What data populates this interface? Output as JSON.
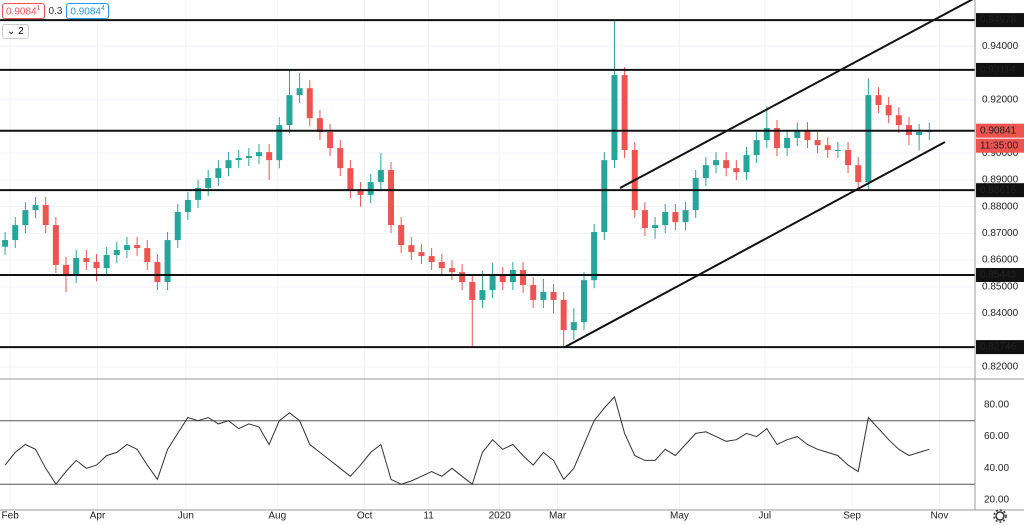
{
  "header": {
    "bid": "0.9084",
    "bid_small": "1",
    "spread": "0.3",
    "ask": "0.9084",
    "ask_small": "4",
    "indicator_count": "2"
  },
  "chart_data": [
    {
      "type": "candlestick",
      "up_color": "#26a69a",
      "down_color": "#ef5350",
      "xlim": [
        0,
        96
      ],
      "xticks": [
        {
          "value": 1,
          "label": "Feb"
        },
        {
          "value": 9.6,
          "label": "Apr"
        },
        {
          "value": 18.3,
          "label": "Jun"
        },
        {
          "value": 27.3,
          "label": "Aug"
        },
        {
          "value": 35.9,
          "label": "Oct"
        },
        {
          "value": 42.2,
          "label": "11"
        },
        {
          "value": 49.2,
          "label": "2020"
        },
        {
          "value": 54.9,
          "label": "Mar"
        },
        {
          "value": 66.9,
          "label": "May"
        },
        {
          "value": 75.3,
          "label": "Jul"
        },
        {
          "value": 83.9,
          "label": "Sep"
        },
        {
          "value": 92.5,
          "label": "Nov"
        }
      ],
      "ylim": [
        0.8159,
        0.9573
      ],
      "yticks": [
        {
          "value": 0.94,
          "label": "0.94000"
        },
        {
          "value": 0.92,
          "label": "0.92000"
        },
        {
          "value": 0.9,
          "label": "0.90000"
        },
        {
          "value": 0.89,
          "label": "0.89000"
        },
        {
          "value": 0.88,
          "label": "0.88000"
        },
        {
          "value": 0.87,
          "label": "0.87000"
        },
        {
          "value": 0.86,
          "label": "0.86000"
        },
        {
          "value": 0.85,
          "label": "0.85000"
        },
        {
          "value": 0.84,
          "label": "0.84000"
        },
        {
          "value": 0.82,
          "label": "0.82000"
        }
      ],
      "levels": [
        0.94978,
        0.93114,
        0.88616,
        0.85443,
        0.82746
      ],
      "last_price": {
        "value": 0.90841,
        "countdown": "11:35:00",
        "color": "#ef5350"
      },
      "open": [
        0.865,
        0.8675,
        0.8731,
        0.8787,
        0.8806,
        0.8731,
        0.8582,
        0.8544,
        0.8608,
        0.8593,
        0.857,
        0.8619,
        0.8638,
        0.8656,
        0.8645,
        0.8593,
        0.8518,
        0.8675,
        0.878,
        0.8825,
        0.887,
        0.8907,
        0.8944,
        0.8974,
        0.8982,
        0.8989,
        0.9004,
        0.8974,
        0.9105,
        0.9217,
        0.9243,
        0.9131,
        0.9079,
        0.9019,
        0.8944,
        0.8862,
        0.8844,
        0.8892,
        0.8937,
        0.8731,
        0.8656,
        0.863,
        0.8615,
        0.8593,
        0.857,
        0.8555,
        0.8518,
        0.8451,
        0.8488,
        0.8544,
        0.8518,
        0.8563,
        0.8507,
        0.8451,
        0.8481,
        0.8451,
        0.8338,
        0.8368,
        0.8525,
        0.8705,
        0.8974,
        0.9292,
        0.9012,
        0.8787,
        0.872,
        0.8731,
        0.878,
        0.8742,
        0.8787,
        0.8907,
        0.8955,
        0.8974,
        0.8944,
        0.8929,
        0.8993,
        0.9049,
        0.9094,
        0.9019,
        0.9057,
        0.9086,
        0.9049,
        0.903,
        0.9012,
        0.9012,
        0.8955,
        0.8892,
        0.9217,
        0.918,
        0.9142,
        0.9105,
        0.9068,
        0.9079
      ],
      "high": [
        0.8705,
        0.8761,
        0.8817,
        0.8836,
        0.8836,
        0.8761,
        0.8612,
        0.8638,
        0.8638,
        0.8623,
        0.8649,
        0.8668,
        0.8686,
        0.8686,
        0.8675,
        0.8623,
        0.8705,
        0.881,
        0.8855,
        0.89,
        0.8937,
        0.8974,
        0.9004,
        0.9012,
        0.9019,
        0.9034,
        0.9034,
        0.9135,
        0.9311,
        0.93,
        0.9273,
        0.9161,
        0.9109,
        0.9049,
        0.8974,
        0.8892,
        0.8922,
        0.9,
        0.8967,
        0.8761,
        0.8686,
        0.866,
        0.8645,
        0.8623,
        0.86,
        0.8585,
        0.8548,
        0.856,
        0.859,
        0.8574,
        0.8593,
        0.8593,
        0.8537,
        0.853,
        0.8511,
        0.8481,
        0.842,
        0.8555,
        0.8735,
        0.9004,
        0.9498,
        0.9322,
        0.9042,
        0.8817,
        0.8761,
        0.881,
        0.881,
        0.8817,
        0.8937,
        0.8985,
        0.9004,
        0.9004,
        0.8974,
        0.9023,
        0.9079,
        0.9175,
        0.9124,
        0.9087,
        0.9116,
        0.9116,
        0.9079,
        0.906,
        0.9042,
        0.9042,
        0.8985,
        0.928,
        0.9247,
        0.921,
        0.9172,
        0.9135,
        0.9109,
        0.9114
      ],
      "low": [
        0.862,
        0.8645,
        0.8701,
        0.8757,
        0.8701,
        0.8552,
        0.848,
        0.8514,
        0.8563,
        0.852,
        0.854,
        0.8589,
        0.8608,
        0.8615,
        0.8563,
        0.8488,
        0.8488,
        0.8645,
        0.875,
        0.8795,
        0.884,
        0.8877,
        0.8914,
        0.8944,
        0.8952,
        0.8959,
        0.89,
        0.8944,
        0.9075,
        0.9187,
        0.9101,
        0.9049,
        0.8989,
        0.8914,
        0.8832,
        0.88,
        0.8814,
        0.8862,
        0.8701,
        0.8626,
        0.86,
        0.8585,
        0.8563,
        0.854,
        0.8525,
        0.8488,
        0.8275,
        0.8421,
        0.8458,
        0.8488,
        0.8488,
        0.8477,
        0.8421,
        0.8421,
        0.84,
        0.8275,
        0.83,
        0.8338,
        0.8495,
        0.8675,
        0.8944,
        0.8982,
        0.8757,
        0.869,
        0.868,
        0.8701,
        0.8712,
        0.8712,
        0.8757,
        0.8877,
        0.8925,
        0.8914,
        0.8899,
        0.8899,
        0.8963,
        0.9019,
        0.8989,
        0.8989,
        0.9027,
        0.9019,
        0.9,
        0.8982,
        0.8982,
        0.8925,
        0.8862,
        0.8862,
        0.915,
        0.9112,
        0.9075,
        0.903,
        0.901,
        0.9049
      ],
      "close": [
        0.8675,
        0.8731,
        0.8787,
        0.8806,
        0.8731,
        0.8582,
        0.8544,
        0.8608,
        0.8593,
        0.857,
        0.8619,
        0.8638,
        0.8656,
        0.8645,
        0.8593,
        0.8518,
        0.8675,
        0.878,
        0.8825,
        0.887,
        0.8907,
        0.8944,
        0.8974,
        0.8982,
        0.8989,
        0.9004,
        0.8974,
        0.9105,
        0.9217,
        0.9243,
        0.9131,
        0.9079,
        0.9019,
        0.8944,
        0.8862,
        0.8844,
        0.8892,
        0.8937,
        0.8731,
        0.8656,
        0.863,
        0.8615,
        0.8593,
        0.857,
        0.8555,
        0.8518,
        0.8451,
        0.8488,
        0.8544,
        0.8518,
        0.8563,
        0.8507,
        0.8451,
        0.8481,
        0.8451,
        0.8338,
        0.8368,
        0.8525,
        0.8705,
        0.8974,
        0.9292,
        0.9012,
        0.8787,
        0.872,
        0.8731,
        0.878,
        0.8742,
        0.8787,
        0.8907,
        0.8955,
        0.8974,
        0.8944,
        0.8929,
        0.8993,
        0.9049,
        0.9094,
        0.9019,
        0.9057,
        0.9086,
        0.9049,
        0.903,
        0.9012,
        0.9012,
        0.8955,
        0.8892,
        0.9217,
        0.918,
        0.9142,
        0.9105,
        0.9068,
        0.9079,
        0.9084
      ]
    },
    {
      "type": "line",
      "color": "#333333",
      "ylim": [
        13.75,
        95
      ],
      "yticks": [
        {
          "value": 80,
          "label": "80.00"
        },
        {
          "value": 60,
          "label": "60.00"
        },
        {
          "value": 40,
          "label": "40.00"
        },
        {
          "value": 20,
          "label": "20.00"
        }
      ],
      "bands": [
        70,
        30
      ],
      "values": [
        42,
        50,
        55,
        52,
        40,
        30,
        38,
        45,
        40,
        42,
        48,
        50,
        55,
        52,
        42,
        33,
        52,
        62,
        72,
        70,
        72,
        68,
        70,
        65,
        68,
        66,
        55,
        70,
        75,
        70,
        55,
        50,
        45,
        40,
        35,
        42,
        50,
        55,
        33,
        30,
        32,
        35,
        38,
        35,
        40,
        35,
        30,
        50,
        58,
        52,
        55,
        48,
        42,
        50,
        45,
        33,
        40,
        55,
        70,
        78,
        85,
        62,
        48,
        45,
        45,
        52,
        48,
        55,
        62,
        63,
        60,
        57,
        58,
        62,
        60,
        65,
        55,
        58,
        60,
        55,
        52,
        50,
        48,
        42,
        38,
        72,
        65,
        58,
        52,
        48,
        50,
        52
      ]
    }
  ]
}
